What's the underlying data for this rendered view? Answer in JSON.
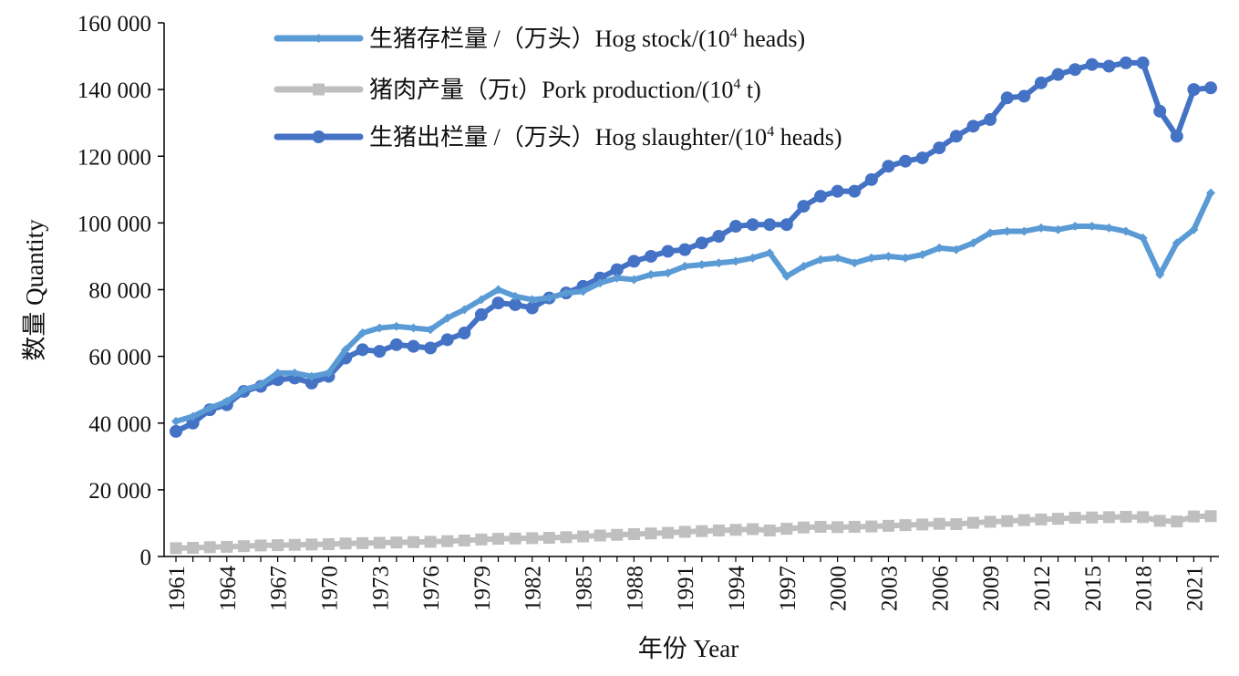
{
  "chart_data": {
    "type": "line",
    "title": "",
    "xlabel": "年份 Year",
    "ylabel": "数量 Quantity",
    "ylim": [
      0,
      160000
    ],
    "yticks": [
      0,
      20000,
      40000,
      60000,
      80000,
      100000,
      120000,
      140000,
      160000
    ],
    "ytick_labels": [
      "0",
      "20 000",
      "40 000",
      "60 000",
      "80 000",
      "100 000",
      "120 000",
      "140 000",
      "160 000"
    ],
    "xtick_labels": [
      "1961",
      "1964",
      "1967",
      "1970",
      "1973",
      "1976",
      "1979",
      "1982",
      "1985",
      "1988",
      "1991",
      "1994",
      "1997",
      "2000",
      "2003",
      "2006",
      "2009",
      "2012",
      "2015",
      "2018",
      "2021"
    ],
    "x": [
      1961,
      1962,
      1963,
      1964,
      1965,
      1966,
      1967,
      1968,
      1969,
      1970,
      1971,
      1972,
      1973,
      1974,
      1975,
      1976,
      1977,
      1978,
      1979,
      1980,
      1981,
      1982,
      1983,
      1984,
      1985,
      1986,
      1987,
      1988,
      1989,
      1990,
      1991,
      1992,
      1993,
      1994,
      1995,
      1996,
      1997,
      1998,
      1999,
      2000,
      2001,
      2002,
      2003,
      2004,
      2005,
      2006,
      2007,
      2008,
      2009,
      2010,
      2011,
      2012,
      2013,
      2014,
      2015,
      2016,
      2017,
      2018,
      2019,
      2020,
      2021,
      2022
    ],
    "grid": false,
    "legend_position": "top-left",
    "series": [
      {
        "name": "生猪存栏量 /（万头）Hog stock/(10⁴ heads)",
        "legend_main": "生猪存栏量 /（万头）Hog stock/(10",
        "legend_sup": "4",
        "legend_tail": " heads)",
        "color": "#5b9bd5",
        "marker": "diamond",
        "values": [
          40500,
          42000,
          44500,
          46500,
          50000,
          51500,
          55000,
          55000,
          54000,
          55000,
          62000,
          67000,
          68500,
          69000,
          68500,
          68000,
          71500,
          74000,
          77000,
          80000,
          78000,
          77000,
          77500,
          79000,
          79500,
          82000,
          83500,
          83000,
          84500,
          85000,
          87000,
          87500,
          88000,
          88500,
          89500,
          91000,
          84000,
          87000,
          89000,
          89500,
          88000,
          89500,
          90000,
          89500,
          90500,
          92500,
          92000,
          94000,
          97000,
          97500,
          97500,
          98500,
          98000,
          99000,
          99000,
          98500,
          97500,
          95500,
          84500,
          94000,
          98000,
          109000
        ]
      },
      {
        "name": "猪肉产量（万t）Pork production/(10⁴ t)",
        "legend_main": "猪肉产量（万t）Pork production/(10",
        "legend_sup": "4",
        "legend_tail": " t)",
        "color": "#bfbfbf",
        "marker": "square",
        "values": [
          2500,
          2600,
          2800,
          2900,
          3100,
          3300,
          3400,
          3500,
          3600,
          3700,
          3900,
          4000,
          4100,
          4200,
          4300,
          4400,
          4600,
          4800,
          5100,
          5300,
          5400,
          5500,
          5600,
          5800,
          6000,
          6300,
          6500,
          6700,
          6900,
          7100,
          7400,
          7600,
          7800,
          8000,
          8200,
          7800,
          8300,
          8700,
          8900,
          8800,
          8900,
          9000,
          9200,
          9400,
          9600,
          9800,
          9700,
          10100,
          10400,
          10600,
          10900,
          11100,
          11300,
          11600,
          11700,
          11800,
          11900,
          11800,
          10700,
          10500,
          12000,
          12100
        ]
      },
      {
        "name": "生猪出栏量 /（万头）Hog slaughter/(10⁴ heads)",
        "legend_main": "生猪出栏量 /（万头）Hog slaughter/(10",
        "legend_sup": "4",
        "legend_tail": " heads)",
        "color": "#4472c4",
        "marker": "circle",
        "values": [
          37500,
          40000,
          44000,
          45500,
          49500,
          51000,
          53000,
          53500,
          52000,
          54000,
          59500,
          62000,
          61500,
          63500,
          63000,
          62500,
          65000,
          67000,
          72500,
          76000,
          75500,
          74500,
          77500,
          79000,
          81000,
          83500,
          86000,
          88500,
          90000,
          91500,
          92000,
          94000,
          96000,
          99000,
          99500,
          99500,
          99500,
          105000,
          108000,
          109500,
          109500,
          113000,
          117000,
          118500,
          119500,
          122500,
          126000,
          129000,
          131000,
          137500,
          138000,
          142000,
          144500,
          146000,
          147500,
          147000,
          148000,
          148000,
          133500,
          126000,
          140000,
          140500
        ]
      }
    ]
  }
}
